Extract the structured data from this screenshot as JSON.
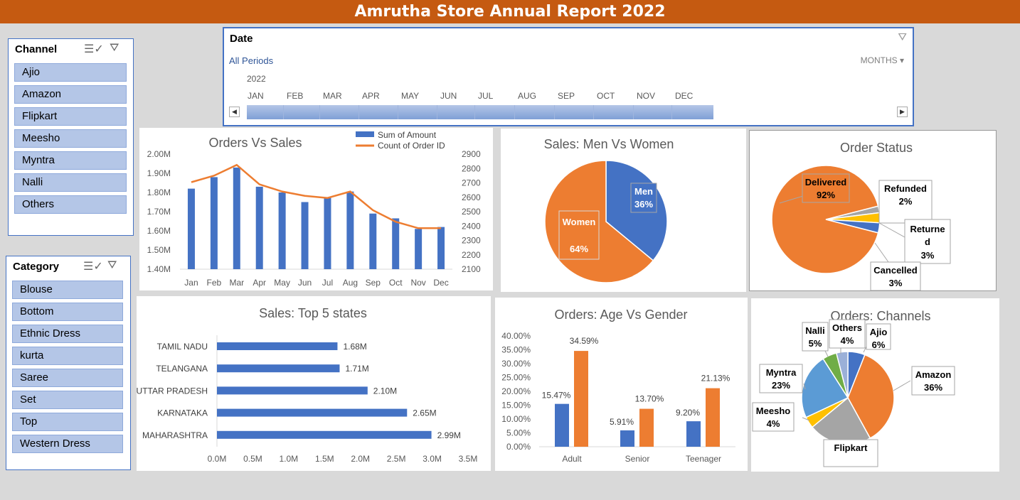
{
  "title": "Amrutha Store Annual Report 2022",
  "colors": {
    "blue": "#4472c4",
    "orange": "#ed7d31",
    "gray": "#a5a5a5",
    "yellow": "#ffc000",
    "lightblue": "#5b9bd5",
    "green": "#70ad47",
    "slicer": "#b4c6e7",
    "header": "#c55a11"
  },
  "channel_slicer": {
    "title": "Channel",
    "items": [
      "Ajio",
      "Amazon",
      "Flipkart",
      "Meesho",
      "Myntra",
      "Nalli",
      "Others"
    ]
  },
  "category_slicer": {
    "title": "Category",
    "items": [
      "Blouse",
      "Bottom",
      "Ethnic Dress",
      "kurta",
      "Saree",
      "Set",
      "Top",
      "Western Dress"
    ]
  },
  "timeline": {
    "title": "Date",
    "all_periods": "All Periods",
    "level": "MONTHS",
    "year": "2022",
    "months": [
      "JAN",
      "FEB",
      "MAR",
      "APR",
      "MAY",
      "JUN",
      "JUL",
      "AUG",
      "SEP",
      "OCT",
      "NOV",
      "DEC"
    ]
  },
  "chart_data": [
    {
      "id": "orders-vs-sales",
      "type": "bar",
      "title": "Orders Vs Sales",
      "categories": [
        "Jan",
        "Feb",
        "Mar",
        "Apr",
        "May",
        "Jun",
        "Jul",
        "Aug",
        "Sep",
        "Oct",
        "Nov",
        "Dec"
      ],
      "series": [
        {
          "name": "Sum of Amount",
          "type": "bar",
          "axis": "left",
          "values": [
            1.82,
            1.88,
            1.93,
            1.83,
            1.8,
            1.75,
            1.775,
            1.805,
            1.69,
            1.665,
            1.61,
            1.62
          ]
        },
        {
          "name": "Count of Order ID",
          "type": "line",
          "axis": "right",
          "values": [
            2705,
            2750,
            2825,
            2690,
            2640,
            2610,
            2595,
            2640,
            2510,
            2430,
            2385,
            2385
          ]
        }
      ],
      "y_left": {
        "ticks": [
          "1.40M",
          "1.50M",
          "1.60M",
          "1.70M",
          "1.80M",
          "1.90M",
          "2.00M"
        ],
        "min": 1.4,
        "max": 2.0
      },
      "y_right": {
        "ticks": [
          "2100",
          "2200",
          "2300",
          "2400",
          "2500",
          "2600",
          "2700",
          "2800",
          "2900"
        ],
        "min": 2100,
        "max": 2900
      },
      "legend": "top-right"
    },
    {
      "id": "men-vs-women",
      "type": "pie",
      "title": "Sales: Men Vs Women",
      "slices": [
        {
          "name": "Men",
          "value": 36,
          "label": "36%"
        },
        {
          "name": "Women",
          "value": 64,
          "label": "64%"
        }
      ]
    },
    {
      "id": "order-status",
      "type": "pie",
      "title": "Order Status",
      "slices": [
        {
          "name": "Delivered",
          "value": 92,
          "label": "92%"
        },
        {
          "name": "Refunded",
          "value": 2,
          "label": "2%"
        },
        {
          "name": "Returned",
          "value": 3,
          "label": "3%"
        },
        {
          "name": "Cancelled",
          "value": 3,
          "label": "3%"
        }
      ]
    },
    {
      "id": "top-states",
      "type": "bar",
      "title": "Sales: Top 5 states",
      "orientation": "horizontal",
      "categories": [
        "TAMIL NADU",
        "TELANGANA",
        "UTTAR PRADESH",
        "KARNATAKA",
        "MAHARASHTRA"
      ],
      "values": [
        1.68,
        1.71,
        2.1,
        2.65,
        2.99
      ],
      "data_labels": [
        "1.68M",
        "1.71M",
        "2.10M",
        "2.65M",
        "2.99M"
      ],
      "x_ticks": [
        "0.0M",
        "0.5M",
        "1.0M",
        "1.5M",
        "2.0M",
        "2.5M",
        "3.0M",
        "3.5M"
      ],
      "xlim": [
        0,
        3.5
      ]
    },
    {
      "id": "age-vs-gender",
      "type": "bar",
      "title": "Orders: Age Vs Gender",
      "categories": [
        "Adult",
        "Senior",
        "Teenager"
      ],
      "series": [
        {
          "values": [
            15.47,
            5.91,
            9.2
          ],
          "labels": [
            "15.47%",
            "5.91%",
            "9.20%"
          ]
        },
        {
          "values": [
            34.59,
            13.7,
            21.13
          ],
          "labels": [
            "34.59%",
            "13.70%",
            "21.13%"
          ]
        }
      ],
      "y_ticks": [
        "0.00%",
        "5.00%",
        "10.00%",
        "15.00%",
        "20.00%",
        "25.00%",
        "30.00%",
        "35.00%",
        "40.00%"
      ],
      "ylim": [
        0,
        40
      ]
    },
    {
      "id": "channels",
      "type": "pie",
      "title": "Orders: Channels",
      "slices": [
        {
          "name": "Ajio",
          "value": 6,
          "label": "6%"
        },
        {
          "name": "Amazon",
          "value": 36,
          "label": "36%"
        },
        {
          "name": "Flipkart",
          "value": 22
        },
        {
          "name": "Meesho",
          "value": 4,
          "label": "4%"
        },
        {
          "name": "Myntra",
          "value": 23,
          "label": "23%"
        },
        {
          "name": "Nalli",
          "value": 5,
          "label": "5%"
        },
        {
          "name": "Others",
          "value": 4,
          "label": "4%"
        }
      ]
    }
  ]
}
